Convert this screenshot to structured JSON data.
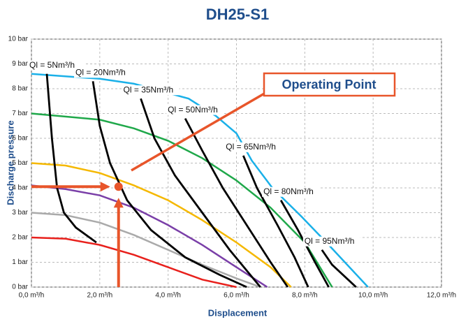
{
  "chart_data": {
    "type": "line",
    "title": "DH25-S1",
    "x_label": "Displacement",
    "y_label": "Discharge pressure",
    "annotation": "Operating Point",
    "operating_point": {
      "x": 2.55,
      "y": 4.05,
      "color": "#e8552a"
    },
    "xlim": [
      0,
      12
    ],
    "ylim": [
      0,
      10
    ],
    "grid": true,
    "xticks": [
      {
        "value": 0,
        "label": "0,0 m³/h"
      },
      {
        "value": 2,
        "label": "2,0 m³/h"
      },
      {
        "value": 4,
        "label": "4,0 m³/h"
      },
      {
        "value": 6,
        "label": "6,0 m³/h"
      },
      {
        "value": 8,
        "label": "8,0 m³/h"
      },
      {
        "value": 10,
        "label": "10,0 m³/h"
      },
      {
        "value": 12,
        "label": "12,0 m³/h"
      }
    ],
    "yticks": [
      {
        "value": 0,
        "label": "0 bar"
      },
      {
        "value": 1,
        "label": "1 bar"
      },
      {
        "value": 2,
        "label": "2 bar"
      },
      {
        "value": 3,
        "label": "3 bar"
      },
      {
        "value": 4,
        "label": "4 bar"
      },
      {
        "value": 5,
        "label": "5 bar"
      },
      {
        "value": 6,
        "label": "6 bar"
      },
      {
        "value": 7,
        "label": "7 bar"
      },
      {
        "value": 8,
        "label": "8 bar"
      },
      {
        "value": 9,
        "label": "9 bar"
      },
      {
        "value": 10,
        "label": "10 bar"
      }
    ],
    "series": [
      {
        "color": "#1ab0e8",
        "x": [
          0,
          2,
          3,
          4.6,
          5.4,
          6,
          6.45,
          7.05,
          7.9,
          8.7,
          9.85
        ],
        "values": [
          8.6,
          8.4,
          8.2,
          7.6,
          6.9,
          6.2,
          5.1,
          4.0,
          2.85,
          1.7,
          0
        ]
      },
      {
        "color": "#1fa84a",
        "x": [
          0,
          2,
          3,
          4,
          5,
          6,
          7,
          8,
          8.8
        ],
        "values": [
          7,
          6.75,
          6.4,
          5.9,
          5.2,
          4.3,
          3.2,
          1.8,
          0
        ]
      },
      {
        "color": "#f5b800",
        "x": [
          0,
          1,
          2,
          3,
          4,
          5,
          6,
          7,
          7.6
        ],
        "values": [
          5,
          4.9,
          4.6,
          4.1,
          3.5,
          2.7,
          1.8,
          0.8,
          0
        ]
      },
      {
        "color": "#7a3fa8",
        "x": [
          0,
          1,
          2,
          3,
          4,
          5,
          6,
          6.9
        ],
        "values": [
          4.1,
          3.95,
          3.7,
          3.2,
          2.5,
          1.7,
          0.8,
          0
        ]
      },
      {
        "color": "#aaaaaa",
        "x": [
          0,
          1,
          2,
          3,
          4,
          5,
          6,
          6.7
        ],
        "values": [
          3,
          2.9,
          2.6,
          2.1,
          1.5,
          0.9,
          0.35,
          0
        ]
      },
      {
        "color": "#e8201c",
        "x": [
          0,
          1,
          2,
          3,
          4,
          5,
          6
        ],
        "values": [
          2,
          1.95,
          1.7,
          1.3,
          0.8,
          0.3,
          0
        ]
      },
      {
        "name": "Ql = 5Nm³/h",
        "color": "#000000",
        "x": [
          0.45,
          0.6,
          0.75,
          0.95,
          1.3,
          1.9
        ],
        "values": [
          8.6,
          6,
          4,
          3,
          2.4,
          1.8
        ]
      },
      {
        "name": "Ql = 20Nm³/h",
        "color": "#000000",
        "x": [
          1.8,
          2.0,
          2.3,
          2.8,
          3.5,
          4.5,
          5.5,
          6.3
        ],
        "values": [
          8.3,
          6.5,
          5,
          3.5,
          2.3,
          1.2,
          0.5,
          0
        ]
      },
      {
        "name": "Ql = 35Nm³/h",
        "color": "#000000",
        "x": [
          3.2,
          3.6,
          4.2,
          5,
          5.8,
          6.7
        ],
        "values": [
          7.6,
          6,
          4.5,
          3,
          1.5,
          0
        ]
      },
      {
        "name": "Ql = 50Nm³/h",
        "color": "#000000",
        "x": [
          4.5,
          5,
          5.6,
          6.3,
          7,
          7.5
        ],
        "values": [
          6.8,
          5.5,
          4,
          2.5,
          1,
          0
        ]
      },
      {
        "name": "Ql = 65Nm³/h",
        "color": "#000000",
        "x": [
          6.2,
          6.6,
          7.2,
          7.7,
          8.1
        ],
        "values": [
          5.3,
          4,
          2.5,
          1.2,
          0
        ]
      },
      {
        "name": "Ql = 80Nm³/h",
        "color": "#000000",
        "x": [
          7.3,
          7.8,
          8.3,
          8.7
        ],
        "values": [
          3.5,
          2.3,
          1,
          0
        ]
      },
      {
        "name": "Ql = 95Nm³/h",
        "color": "#000000",
        "x": [
          8.5,
          8.8,
          9.5
        ],
        "values": [
          1.5,
          0.9,
          0
        ]
      }
    ]
  }
}
